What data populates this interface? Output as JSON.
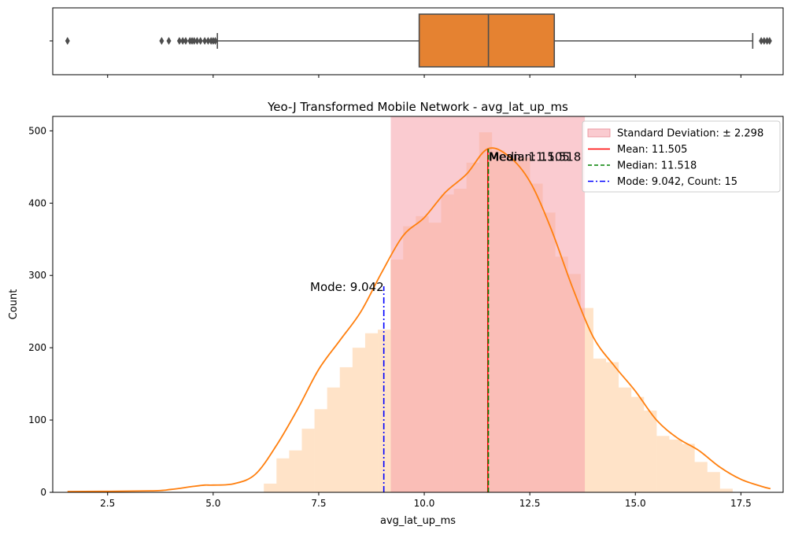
{
  "chart_data": [
    {
      "type": "box",
      "title": "",
      "xlim": [
        1.2,
        18.5
      ],
      "ticks": [
        2.5,
        5.0,
        7.5,
        10.0,
        12.5,
        15.0,
        17.5
      ],
      "q1": 9.88,
      "median": 11.52,
      "q3": 13.08,
      "whisker_low": 5.1,
      "whisker_high": 17.78,
      "outliers": [
        1.55,
        3.78,
        3.95,
        4.2,
        4.28,
        4.35,
        4.45,
        4.5,
        4.55,
        4.62,
        4.7,
        4.8,
        4.88,
        4.95,
        5.0,
        5.05,
        17.98,
        18.05,
        18.12,
        18.18
      ],
      "box_color": "#e58231",
      "line_color": "#4d4d4d"
    },
    {
      "type": "bar",
      "title": "Yeo-J Transformed Mobile Network - avg_lat_up_ms",
      "xlabel": "avg_lat_up_ms",
      "ylabel": "Count",
      "xlim": [
        1.2,
        18.5
      ],
      "ylim": [
        0,
        520
      ],
      "xticks": [
        2.5,
        5.0,
        7.5,
        10.0,
        12.5,
        15.0,
        17.5
      ],
      "xtick_labels": [
        "2.5",
        "5.0",
        "7.5",
        "10.0",
        "12.5",
        "15.0",
        "17.5"
      ],
      "yticks": [
        0,
        100,
        200,
        300,
        400,
        500
      ],
      "bin_width": 0.3,
      "histogram_x": [
        6.2,
        6.5,
        6.8,
        7.1,
        7.4,
        7.7,
        8.0,
        8.3,
        8.6,
        8.9,
        9.2,
        9.5,
        9.8,
        10.1,
        10.4,
        10.7,
        11.0,
        11.3,
        11.6,
        11.9,
        12.2,
        12.5,
        12.8,
        13.1,
        13.4,
        13.7,
        14.0,
        14.3,
        14.6,
        14.9,
        15.2,
        15.5,
        15.8,
        16.1,
        16.4,
        16.7,
        17.0
      ],
      "histogram_counts": [
        12,
        47,
        58,
        88,
        115,
        145,
        173,
        200,
        220,
        225,
        322,
        368,
        382,
        373,
        412,
        420,
        456,
        498,
        473,
        462,
        463,
        427,
        387,
        326,
        302,
        255,
        185,
        180,
        145,
        132,
        113,
        78,
        73,
        67,
        42,
        28,
        5
      ],
      "kde_x": [
        1.55,
        3.5,
        4.0,
        4.5,
        4.8,
        5.0,
        5.5,
        6.0,
        6.5,
        7.0,
        7.5,
        8.0,
        8.5,
        9.0,
        9.5,
        10.0,
        10.5,
        11.0,
        11.5,
        12.0,
        12.5,
        13.0,
        13.5,
        14.0,
        14.5,
        15.0,
        15.5,
        16.0,
        16.5,
        17.0,
        17.5,
        18.0,
        18.2
      ],
      "kde_y": [
        1,
        2,
        4,
        8,
        10,
        10,
        12,
        25,
        65,
        115,
        170,
        210,
        250,
        305,
        355,
        380,
        415,
        440,
        475,
        465,
        430,
        365,
        285,
        215,
        175,
        140,
        100,
        75,
        58,
        35,
        18,
        8,
        5
      ],
      "std_band": [
        9.207,
        13.803
      ],
      "mean": 11.505,
      "median": 11.518,
      "mode": 9.042,
      "mode_line_top": 285,
      "annotations": [
        {
          "text": "Mean: 11.505",
          "x": 11.505
        },
        {
          "text": "Median: 11.518",
          "x": 11.518
        },
        {
          "text": "Mode: 9.042",
          "x": 9.042
        }
      ],
      "legend": {
        "position": "top-right",
        "std": "Standard Deviation: ± 2.298",
        "mean": "Mean: 11.505",
        "median": "Median: 11.518",
        "mode": "Mode: 9.042, Count: 15"
      },
      "colors": {
        "hist": "#ffe3c8",
        "std_band": "#f5a0aa",
        "kde": "#ff7f0e",
        "mean": "#ff0000",
        "median": "#008000",
        "mode": "#0000ff"
      }
    }
  ]
}
